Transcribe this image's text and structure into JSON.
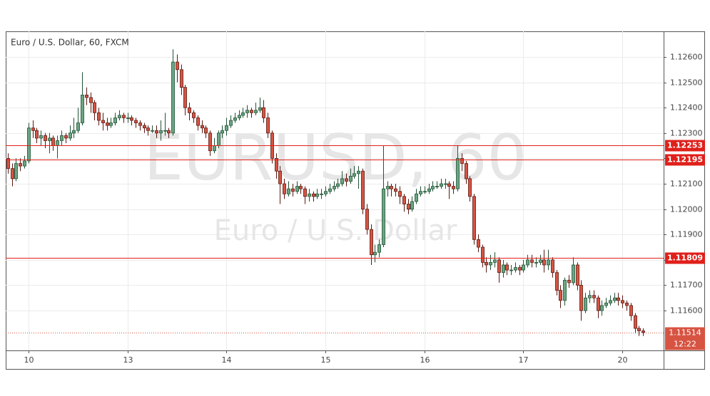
{
  "chart_data": {
    "type": "candlestick",
    "title": "Euro / U.S. Dollar, 60, FXCM",
    "watermark": "EURUSD, 60",
    "watermark_subtitle": "Euro / U.S. Dollar",
    "up_color": "#6ba583",
    "down_color": "#d75442",
    "up_border": "#225437",
    "down_border": "#5b1a13",
    "grid": true,
    "ylim": [
      1.11443,
      1.12701
    ],
    "yticks": [
      {
        "value": 1.126,
        "label": "1.12600"
      },
      {
        "value": 1.125,
        "label": "1.12500"
      },
      {
        "value": 1.124,
        "label": "1.12400"
      },
      {
        "value": 1.123,
        "label": "1.12300"
      },
      {
        "value": 1.122,
        "label": "1.12200"
      },
      {
        "value": 1.121,
        "label": "1.12100"
      },
      {
        "value": 1.12,
        "label": "1.12000"
      },
      {
        "value": 1.119,
        "label": "1.11900"
      },
      {
        "value": 1.118,
        "label": "1.11800"
      },
      {
        "value": 1.117,
        "label": "1.11700"
      },
      {
        "value": 1.116,
        "label": "1.11600"
      }
    ],
    "xlim": [
      -0.5,
      159
    ],
    "xticks": [
      {
        "value": 5,
        "label": "10"
      },
      {
        "value": 29,
        "label": "13"
      },
      {
        "value": 53,
        "label": "14"
      },
      {
        "value": 77,
        "label": "15"
      },
      {
        "value": 101,
        "label": "16"
      },
      {
        "value": 125,
        "label": "17"
      },
      {
        "value": 149,
        "label": "20"
      }
    ],
    "hlines": [
      {
        "value": 1.12253,
        "label": "1.12253"
      },
      {
        "value": 1.12195,
        "label": "1.12195"
      },
      {
        "value": 1.11809,
        "label": "1.11809"
      }
    ],
    "hline_color": "#e0201b",
    "last_price": {
      "value": 1.11514,
      "label": "1.11514"
    },
    "countdown": "12:22",
    "candles": [
      [
        1.122,
        1.1222,
        1.1214,
        1.1216
      ],
      [
        1.1216,
        1.1218,
        1.1209,
        1.1212
      ],
      [
        1.1212,
        1.122,
        1.1211,
        1.1218
      ],
      [
        1.1218,
        1.122,
        1.1215,
        1.1217
      ],
      [
        1.1217,
        1.1221,
        1.1216,
        1.1219
      ],
      [
        1.1219,
        1.1234,
        1.1218,
        1.1232
      ],
      [
        1.1232,
        1.1235,
        1.1228,
        1.1231
      ],
      [
        1.1231,
        1.1232,
        1.1226,
        1.1228
      ],
      [
        1.1228,
        1.1231,
        1.1225,
        1.1229
      ],
      [
        1.1229,
        1.123,
        1.1224,
        1.1227
      ],
      [
        1.1227,
        1.123,
        1.1222,
        1.1228
      ],
      [
        1.1228,
        1.1229,
        1.1223,
        1.1225
      ],
      [
        1.1225,
        1.1229,
        1.122,
        1.1227
      ],
      [
        1.1227,
        1.1231,
        1.1225,
        1.1229
      ],
      [
        1.1229,
        1.123,
        1.1226,
        1.1228
      ],
      [
        1.1228,
        1.1233,
        1.1227,
        1.123
      ],
      [
        1.123,
        1.1236,
        1.1228,
        1.1231
      ],
      [
        1.1231,
        1.124,
        1.123,
        1.1234
      ],
      [
        1.1234,
        1.1254,
        1.1233,
        1.1245
      ],
      [
        1.1245,
        1.1248,
        1.1241,
        1.1244
      ],
      [
        1.1244,
        1.1246,
        1.1238,
        1.1242
      ],
      [
        1.1242,
        1.1243,
        1.1235,
        1.1238
      ],
      [
        1.1238,
        1.124,
        1.1233,
        1.1235
      ],
      [
        1.1235,
        1.1238,
        1.1231,
        1.1234
      ],
      [
        1.1234,
        1.1236,
        1.1231,
        1.1233
      ],
      [
        1.1233,
        1.1236,
        1.1232,
        1.1234
      ],
      [
        1.1234,
        1.1238,
        1.1233,
        1.1236
      ],
      [
        1.1236,
        1.1239,
        1.1235,
        1.1237
      ],
      [
        1.1237,
        1.1238,
        1.1234,
        1.1236
      ],
      [
        1.1236,
        1.1238,
        1.1234,
        1.1236
      ],
      [
        1.1236,
        1.1237,
        1.1233,
        1.1235
      ],
      [
        1.1235,
        1.1236,
        1.1232,
        1.1234
      ],
      [
        1.1234,
        1.1235,
        1.1231,
        1.1233
      ],
      [
        1.1233,
        1.1234,
        1.123,
        1.1232
      ],
      [
        1.1232,
        1.1233,
        1.1229,
        1.1231
      ],
      [
        1.1231,
        1.1233,
        1.123,
        1.1231
      ],
      [
        1.1231,
        1.1233,
        1.1228,
        1.123
      ],
      [
        1.123,
        1.1235,
        1.1227,
        1.1231
      ],
      [
        1.1231,
        1.1238,
        1.1229,
        1.1231
      ],
      [
        1.1231,
        1.1232,
        1.1228,
        1.123
      ],
      [
        1.123,
        1.1263,
        1.1229,
        1.1258
      ],
      [
        1.1258,
        1.1261,
        1.125,
        1.1255
      ],
      [
        1.1255,
        1.1257,
        1.1245,
        1.1248
      ],
      [
        1.1248,
        1.1249,
        1.1237,
        1.124
      ],
      [
        1.124,
        1.1242,
        1.1235,
        1.1238
      ],
      [
        1.1238,
        1.1239,
        1.1234,
        1.1236
      ],
      [
        1.1236,
        1.1237,
        1.1231,
        1.1233
      ],
      [
        1.1233,
        1.1235,
        1.123,
        1.1232
      ],
      [
        1.1232,
        1.1233,
        1.1228,
        1.123
      ],
      [
        1.123,
        1.1231,
        1.1221,
        1.1223
      ],
      [
        1.1223,
        1.1228,
        1.1222,
        1.1225
      ],
      [
        1.1225,
        1.1231,
        1.1224,
        1.123
      ],
      [
        1.123,
        1.1233,
        1.1228,
        1.1231
      ],
      [
        1.1231,
        1.1236,
        1.1229,
        1.1233
      ],
      [
        1.1233,
        1.1237,
        1.1232,
        1.1235
      ],
      [
        1.1235,
        1.1238,
        1.1234,
        1.1236
      ],
      [
        1.1236,
        1.1239,
        1.1235,
        1.1237
      ],
      [
        1.1237,
        1.124,
        1.1236,
        1.1238
      ],
      [
        1.1238,
        1.1241,
        1.1236,
        1.1239
      ],
      [
        1.1239,
        1.124,
        1.1236,
        1.1238
      ],
      [
        1.1238,
        1.1242,
        1.1237,
        1.1239
      ],
      [
        1.1239,
        1.1244,
        1.1238,
        1.124
      ],
      [
        1.124,
        1.1243,
        1.1234,
        1.1236
      ],
      [
        1.1236,
        1.1238,
        1.1228,
        1.123
      ],
      [
        1.123,
        1.1231,
        1.1218,
        1.122
      ],
      [
        1.122,
        1.1222,
        1.1212,
        1.1215
      ],
      [
        1.1215,
        1.1217,
        1.1202,
        1.121
      ],
      [
        1.121,
        1.1212,
        1.1204,
        1.1206
      ],
      [
        1.1206,
        1.1211,
        1.1205,
        1.1208
      ],
      [
        1.1208,
        1.121,
        1.1205,
        1.1207
      ],
      [
        1.1207,
        1.1211,
        1.1206,
        1.1209
      ],
      [
        1.1209,
        1.121,
        1.1206,
        1.1208
      ],
      [
        1.1208,
        1.1209,
        1.1202,
        1.1205
      ],
      [
        1.1205,
        1.1208,
        1.1203,
        1.1206
      ],
      [
        1.1206,
        1.1207,
        1.1203,
        1.1205
      ],
      [
        1.1205,
        1.1208,
        1.1204,
        1.1206
      ],
      [
        1.1206,
        1.1208,
        1.1204,
        1.1206
      ],
      [
        1.1206,
        1.1209,
        1.1205,
        1.1207
      ],
      [
        1.1207,
        1.121,
        1.1206,
        1.1208
      ],
      [
        1.1208,
        1.1211,
        1.1207,
        1.1209
      ],
      [
        1.1209,
        1.1212,
        1.1208,
        1.121
      ],
      [
        1.121,
        1.1215,
        1.1209,
        1.1212
      ],
      [
        1.1212,
        1.1214,
        1.1209,
        1.1211
      ],
      [
        1.1211,
        1.1216,
        1.121,
        1.1213
      ],
      [
        1.1213,
        1.1217,
        1.1212,
        1.1214
      ],
      [
        1.1214,
        1.1217,
        1.1208,
        1.1215
      ],
      [
        1.1215,
        1.1216,
        1.1198,
        1.12
      ],
      [
        1.12,
        1.1202,
        1.119,
        1.1192
      ],
      [
        1.1192,
        1.1194,
        1.1178,
        1.1182
      ],
      [
        1.1182,
        1.1186,
        1.1179,
        1.1183
      ],
      [
        1.1183,
        1.1188,
        1.1181,
        1.1186
      ],
      [
        1.1186,
        1.1225,
        1.1185,
        1.1208
      ],
      [
        1.1208,
        1.1211,
        1.1205,
        1.1209
      ],
      [
        1.1209,
        1.121,
        1.1205,
        1.1208
      ],
      [
        1.1208,
        1.121,
        1.1205,
        1.1207
      ],
      [
        1.1207,
        1.1209,
        1.1202,
        1.1205
      ],
      [
        1.1205,
        1.1206,
        1.1199,
        1.1202
      ],
      [
        1.1202,
        1.1204,
        1.1198,
        1.12
      ],
      [
        1.12,
        1.1205,
        1.1199,
        1.1203
      ],
      [
        1.1203,
        1.1208,
        1.1202,
        1.1206
      ],
      [
        1.1206,
        1.1209,
        1.1205,
        1.1207
      ],
      [
        1.1207,
        1.1209,
        1.1206,
        1.1207
      ],
      [
        1.1207,
        1.121,
        1.1206,
        1.1208
      ],
      [
        1.1208,
        1.1211,
        1.1207,
        1.1209
      ],
      [
        1.1209,
        1.1211,
        1.1208,
        1.1209
      ],
      [
        1.1209,
        1.1212,
        1.1208,
        1.121
      ],
      [
        1.121,
        1.1212,
        1.1208,
        1.121
      ],
      [
        1.121,
        1.1211,
        1.1204,
        1.1209
      ],
      [
        1.1209,
        1.1211,
        1.1206,
        1.1208
      ],
      [
        1.1208,
        1.1225,
        1.1207,
        1.122
      ],
      [
        1.122,
        1.1222,
        1.1215,
        1.1218
      ],
      [
        1.1218,
        1.1219,
        1.121,
        1.1212
      ],
      [
        1.1212,
        1.1213,
        1.1203,
        1.1205
      ],
      [
        1.1205,
        1.1206,
        1.1186,
        1.1188
      ],
      [
        1.1188,
        1.119,
        1.1183,
        1.1185
      ],
      [
        1.1185,
        1.1186,
        1.1177,
        1.1179
      ],
      [
        1.1179,
        1.1181,
        1.1175,
        1.1178
      ],
      [
        1.1178,
        1.1182,
        1.1176,
        1.1179
      ],
      [
        1.1179,
        1.1183,
        1.1177,
        1.118
      ],
      [
        1.118,
        1.1181,
        1.1171,
        1.1175
      ],
      [
        1.1175,
        1.118,
        1.1173,
        1.1178
      ],
      [
        1.1178,
        1.1179,
        1.1174,
        1.1176
      ],
      [
        1.1176,
        1.1178,
        1.1174,
        1.1176
      ],
      [
        1.1176,
        1.1179,
        1.1175,
        1.1177
      ],
      [
        1.1177,
        1.1178,
        1.1174,
        1.1176
      ],
      [
        1.1176,
        1.118,
        1.1175,
        1.1178
      ],
      [
        1.1178,
        1.1182,
        1.1177,
        1.118
      ],
      [
        1.118,
        1.1182,
        1.1177,
        1.1179
      ],
      [
        1.1179,
        1.1181,
        1.1177,
        1.1179
      ],
      [
        1.1179,
        1.1182,
        1.1178,
        1.118
      ],
      [
        1.118,
        1.1184,
        1.1175,
        1.1178
      ],
      [
        1.1178,
        1.1184,
        1.1176,
        1.118
      ],
      [
        1.118,
        1.1181,
        1.1173,
        1.1175
      ],
      [
        1.1175,
        1.1176,
        1.1166,
        1.1168
      ],
      [
        1.1168,
        1.117,
        1.1161,
        1.1164
      ],
      [
        1.1164,
        1.1173,
        1.1162,
        1.1172
      ],
      [
        1.1172,
        1.1174,
        1.1169,
        1.1171
      ],
      [
        1.1171,
        1.1181,
        1.117,
        1.1178
      ],
      [
        1.1178,
        1.1179,
        1.1168,
        1.117
      ],
      [
        1.117,
        1.1172,
        1.1156,
        1.116
      ],
      [
        1.116,
        1.1167,
        1.1159,
        1.1165
      ],
      [
        1.1165,
        1.1168,
        1.1163,
        1.1166
      ],
      [
        1.1166,
        1.1168,
        1.1163,
        1.1165
      ],
      [
        1.1165,
        1.1166,
        1.1157,
        1.116
      ],
      [
        1.116,
        1.1164,
        1.1158,
        1.1162
      ],
      [
        1.1162,
        1.1165,
        1.1161,
        1.1163
      ],
      [
        1.1163,
        1.1166,
        1.1162,
        1.1164
      ],
      [
        1.1164,
        1.1167,
        1.1163,
        1.1165
      ],
      [
        1.1165,
        1.1167,
        1.1162,
        1.1164
      ],
      [
        1.1164,
        1.1166,
        1.1161,
        1.1163
      ],
      [
        1.1163,
        1.1164,
        1.116,
        1.1162
      ],
      [
        1.1162,
        1.1163,
        1.1156,
        1.1158
      ],
      [
        1.1158,
        1.1159,
        1.1151,
        1.1153
      ],
      [
        1.1153,
        1.1154,
        1.115,
        1.1152
      ],
      [
        1.1152,
        1.1153,
        1.115,
        1.11514
      ]
    ]
  }
}
